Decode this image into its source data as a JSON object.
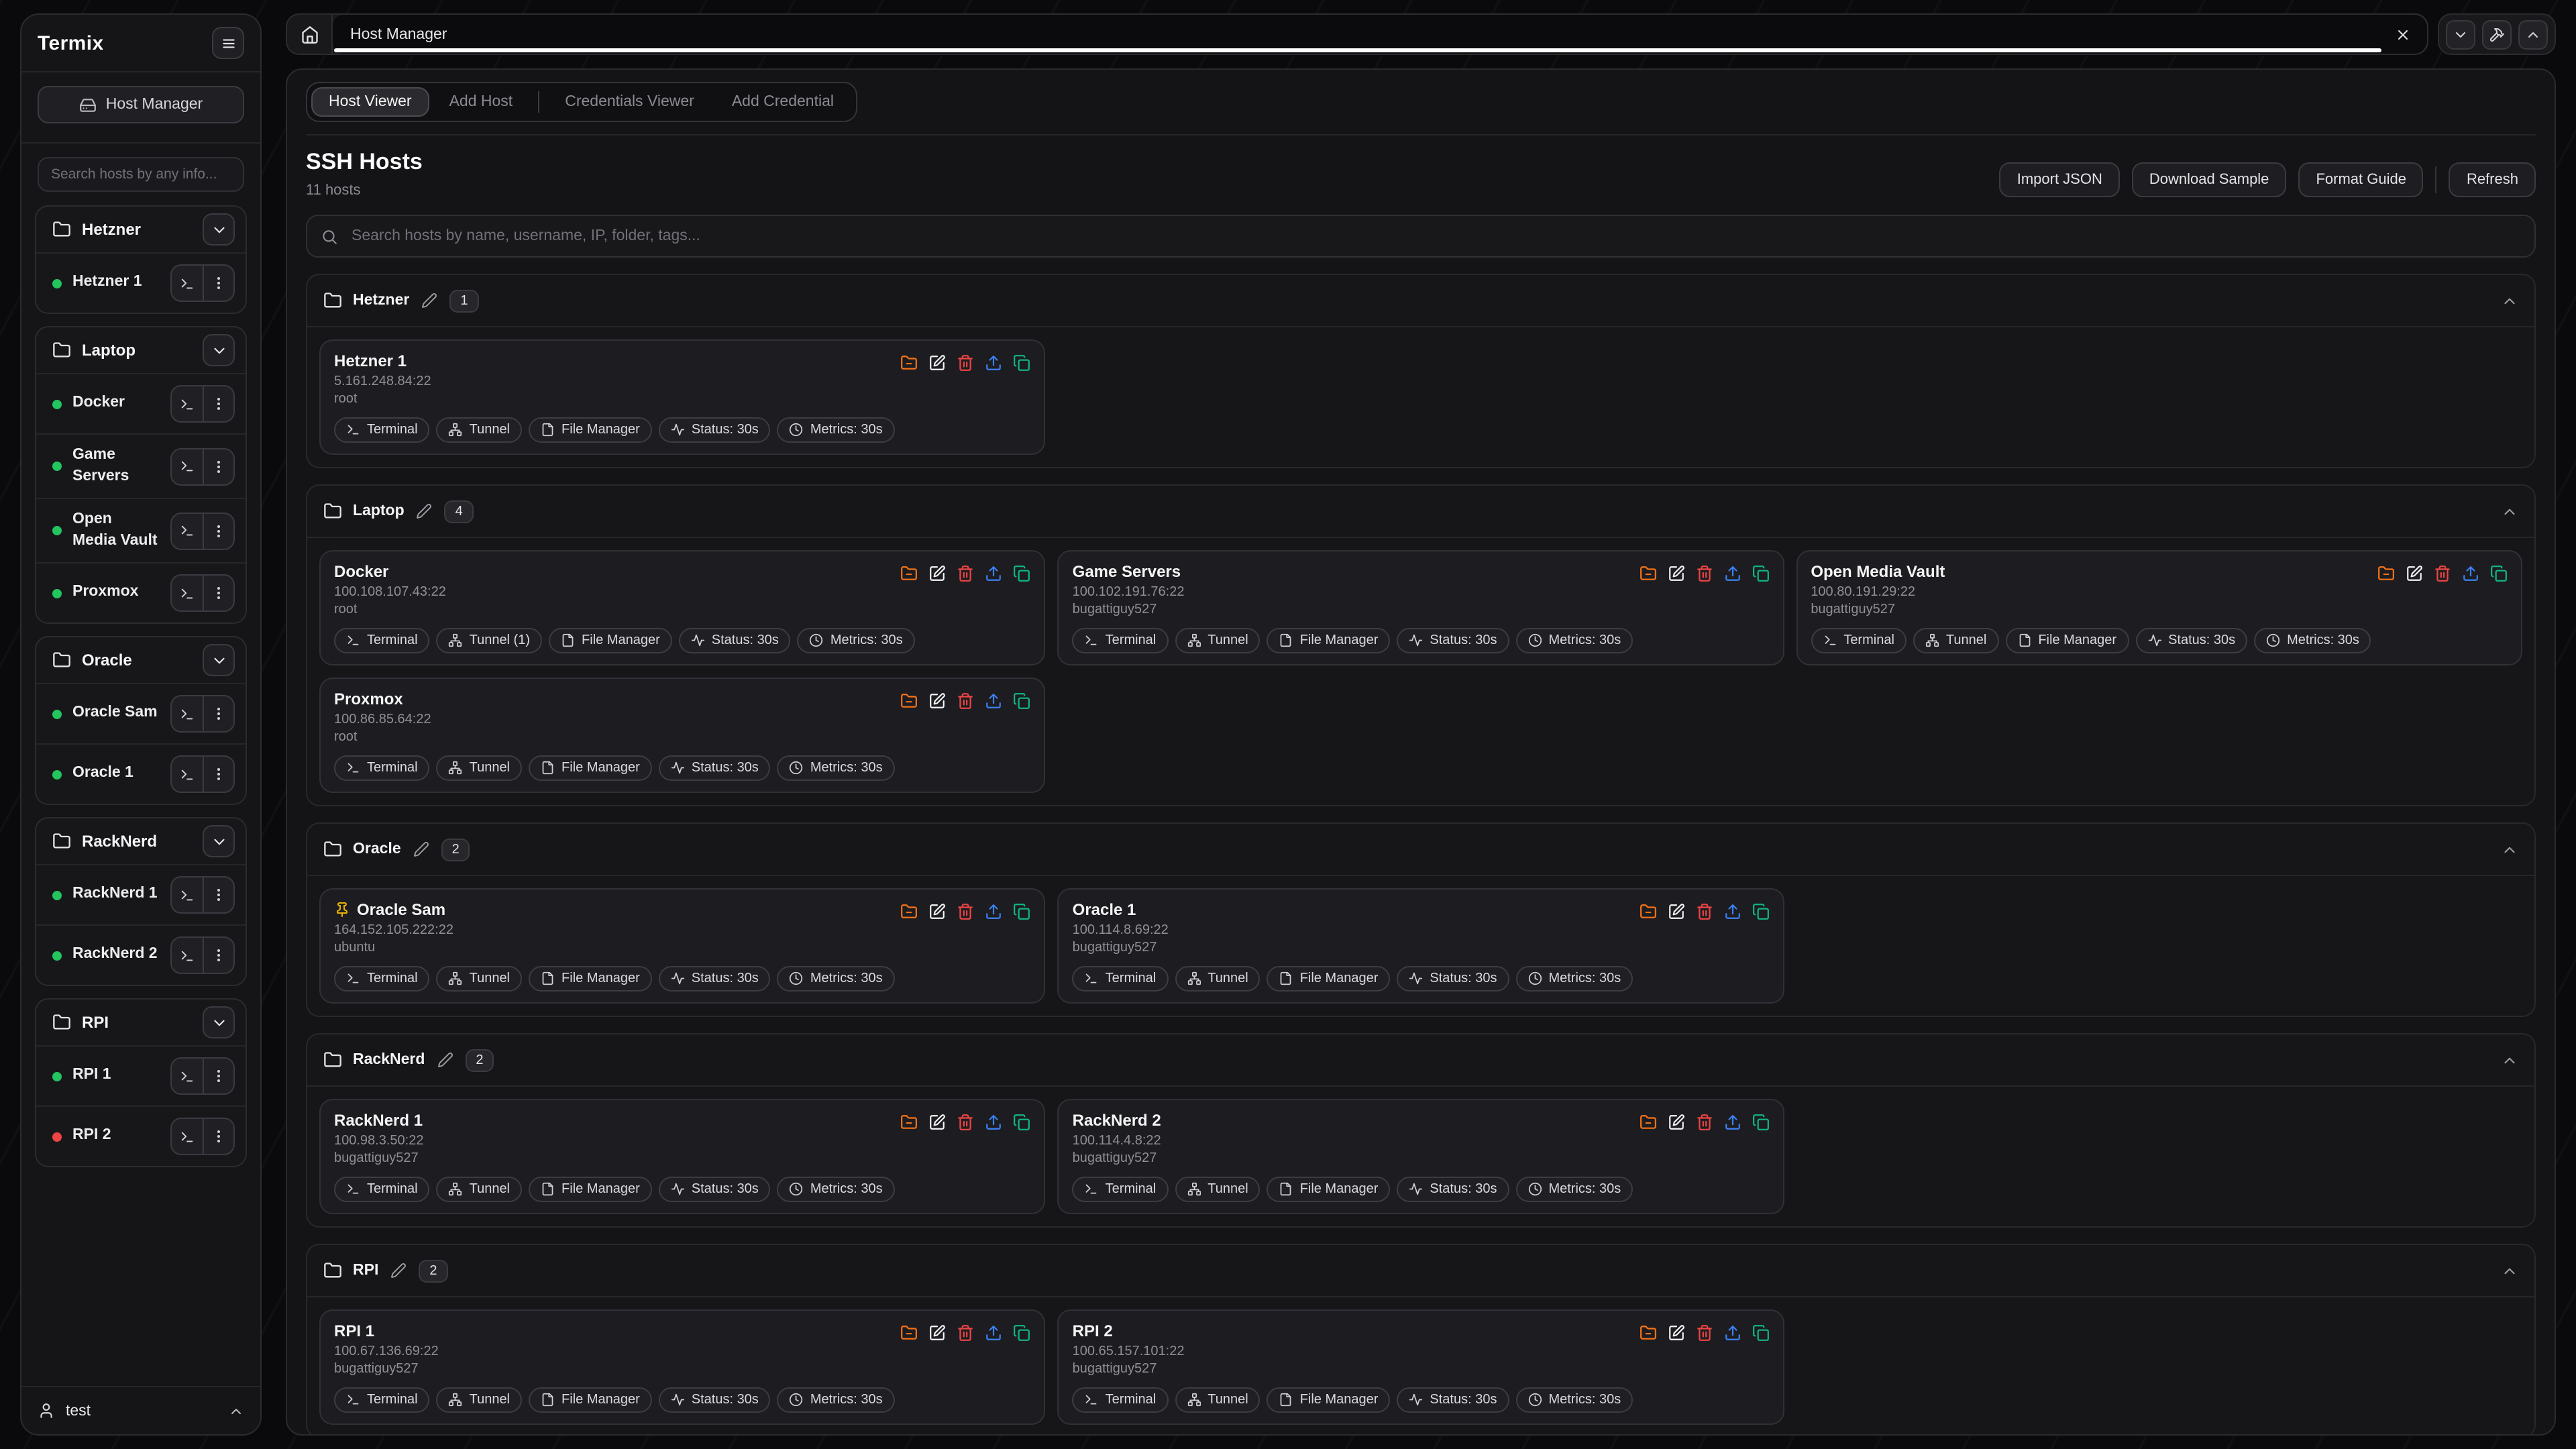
{
  "app": {
    "brand": "Termix",
    "user": "test"
  },
  "topbar": {
    "tab_title": "Host Manager",
    "icons": [
      "home-icon",
      "close-icon",
      "chevron-down-icon",
      "hammer-icon",
      "chevron-up-icon"
    ]
  },
  "sidebar": {
    "host_manager_label": "Host Manager",
    "host_manager_icon": "hard-drive-icon",
    "search_placeholder": "Search hosts by any info...",
    "folder_icon": "folder-icon",
    "row_icons": [
      "terminal-icon",
      "kebab-menu-icon"
    ],
    "status_colors": {
      "online": "#22c55e",
      "offline": "#ef4444"
    },
    "folders": [
      {
        "name": "Hetzner",
        "hosts": [
          {
            "name": "Hetzner 1",
            "status": "online"
          }
        ]
      },
      {
        "name": "Laptop",
        "hosts": [
          {
            "name": "Docker",
            "status": "online"
          },
          {
            "name": "Game Servers",
            "status": "online"
          },
          {
            "name": "Open Media Vault",
            "status": "online"
          },
          {
            "name": "Proxmox",
            "status": "online"
          }
        ]
      },
      {
        "name": "Oracle",
        "hosts": [
          {
            "name": "Oracle Sam",
            "status": "online"
          },
          {
            "name": "Oracle 1",
            "status": "online"
          }
        ]
      },
      {
        "name": "RackNerd",
        "hosts": [
          {
            "name": "RackNerd 1",
            "status": "online"
          },
          {
            "name": "RackNerd 2",
            "status": "online"
          }
        ]
      },
      {
        "name": "RPI",
        "hosts": [
          {
            "name": "RPI 1",
            "status": "online"
          },
          {
            "name": "RPI 2",
            "status": "offline"
          }
        ]
      }
    ]
  },
  "main": {
    "tabs": [
      {
        "label": "Host Viewer",
        "active": true
      },
      {
        "label": "Add Host",
        "active": false
      },
      {
        "label": "Credentials Viewer",
        "active": false
      },
      {
        "label": "Add Credential",
        "active": false
      }
    ],
    "title": "SSH Hosts",
    "host_count": "11 hosts",
    "toolbar": {
      "import_json": "Import JSON",
      "download_sample": "Download Sample",
      "format_guide": "Format Guide",
      "refresh": "Refresh"
    },
    "search_placeholder": "Search hosts by name, username, IP, folder, tags...",
    "card_action_icons": [
      "folder-minus-icon",
      "edit-icon",
      "delete-icon",
      "upload-icon",
      "copy-icon"
    ],
    "card_action_colors": {
      "folder-minus-icon": "#f97316",
      "edit-icon": "#f4f4f5",
      "delete-icon": "#ef4444",
      "upload-icon": "#3b82f6",
      "copy-icon": "#10b981"
    },
    "pin_color": "#eab308",
    "sections": [
      {
        "folder": "Hetzner",
        "count": "1",
        "hosts": [
          {
            "name": "Hetzner 1",
            "address": "5.161.248.84:22",
            "username": "root",
            "pinned": false,
            "chips": [
              {
                "icon": "terminal-icon",
                "label": "Terminal"
              },
              {
                "icon": "tunnel-icon",
                "label": "Tunnel"
              },
              {
                "icon": "file-manager-icon",
                "label": "File Manager"
              },
              {
                "icon": "status-icon",
                "label": "Status: 30s"
              },
              {
                "icon": "metrics-icon",
                "label": "Metrics: 30s"
              }
            ]
          }
        ]
      },
      {
        "folder": "Laptop",
        "count": "4",
        "hosts": [
          {
            "name": "Docker",
            "address": "100.108.107.43:22",
            "username": "root",
            "pinned": false,
            "chips": [
              {
                "icon": "terminal-icon",
                "label": "Terminal"
              },
              {
                "icon": "tunnel-icon",
                "label": "Tunnel (1)"
              },
              {
                "icon": "file-manager-icon",
                "label": "File Manager"
              },
              {
                "icon": "status-icon",
                "label": "Status: 30s"
              },
              {
                "icon": "metrics-icon",
                "label": "Metrics: 30s"
              }
            ]
          },
          {
            "name": "Game Servers",
            "address": "100.102.191.76:22",
            "username": "bugattiguy527",
            "pinned": false,
            "chips": [
              {
                "icon": "terminal-icon",
                "label": "Terminal"
              },
              {
                "icon": "tunnel-icon",
                "label": "Tunnel"
              },
              {
                "icon": "file-manager-icon",
                "label": "File Manager"
              },
              {
                "icon": "status-icon",
                "label": "Status: 30s"
              },
              {
                "icon": "metrics-icon",
                "label": "Metrics: 30s"
              }
            ]
          },
          {
            "name": "Open Media Vault",
            "address": "100.80.191.29:22",
            "username": "bugattiguy527",
            "pinned": false,
            "chips": [
              {
                "icon": "terminal-icon",
                "label": "Terminal"
              },
              {
                "icon": "tunnel-icon",
                "label": "Tunnel"
              },
              {
                "icon": "file-manager-icon",
                "label": "File Manager"
              },
              {
                "icon": "status-icon",
                "label": "Status: 30s"
              },
              {
                "icon": "metrics-icon",
                "label": "Metrics: 30s"
              }
            ]
          },
          {
            "name": "Proxmox",
            "address": "100.86.85.64:22",
            "username": "root",
            "pinned": false,
            "chips": [
              {
                "icon": "terminal-icon",
                "label": "Terminal"
              },
              {
                "icon": "tunnel-icon",
                "label": "Tunnel"
              },
              {
                "icon": "file-manager-icon",
                "label": "File Manager"
              },
              {
                "icon": "status-icon",
                "label": "Status: 30s"
              },
              {
                "icon": "metrics-icon",
                "label": "Metrics: 30s"
              }
            ]
          }
        ]
      },
      {
        "folder": "Oracle",
        "count": "2",
        "hosts": [
          {
            "name": "Oracle Sam",
            "address": "164.152.105.222:22",
            "username": "ubuntu",
            "pinned": true,
            "chips": [
              {
                "icon": "terminal-icon",
                "label": "Terminal"
              },
              {
                "icon": "tunnel-icon",
                "label": "Tunnel"
              },
              {
                "icon": "file-manager-icon",
                "label": "File Manager"
              },
              {
                "icon": "status-icon",
                "label": "Status: 30s"
              },
              {
                "icon": "metrics-icon",
                "label": "Metrics: 30s"
              }
            ]
          },
          {
            "name": "Oracle 1",
            "address": "100.114.8.69:22",
            "username": "bugattiguy527",
            "pinned": false,
            "chips": [
              {
                "icon": "terminal-icon",
                "label": "Terminal"
              },
              {
                "icon": "tunnel-icon",
                "label": "Tunnel"
              },
              {
                "icon": "file-manager-icon",
                "label": "File Manager"
              },
              {
                "icon": "status-icon",
                "label": "Status: 30s"
              },
              {
                "icon": "metrics-icon",
                "label": "Metrics: 30s"
              }
            ]
          }
        ]
      },
      {
        "folder": "RackNerd",
        "count": "2",
        "hosts": [
          {
            "name": "RackNerd 1",
            "address": "100.98.3.50:22",
            "username": "bugattiguy527",
            "pinned": false,
            "chips": [
              {
                "icon": "terminal-icon",
                "label": "Terminal"
              },
              {
                "icon": "tunnel-icon",
                "label": "Tunnel"
              },
              {
                "icon": "file-manager-icon",
                "label": "File Manager"
              },
              {
                "icon": "status-icon",
                "label": "Status: 30s"
              },
              {
                "icon": "metrics-icon",
                "label": "Metrics: 30s"
              }
            ]
          },
          {
            "name": "RackNerd 2",
            "address": "100.114.4.8:22",
            "username": "bugattiguy527",
            "pinned": false,
            "chips": [
              {
                "icon": "terminal-icon",
                "label": "Terminal"
              },
              {
                "icon": "tunnel-icon",
                "label": "Tunnel"
              },
              {
                "icon": "file-manager-icon",
                "label": "File Manager"
              },
              {
                "icon": "status-icon",
                "label": "Status: 30s"
              },
              {
                "icon": "metrics-icon",
                "label": "Metrics: 30s"
              }
            ]
          }
        ]
      },
      {
        "folder": "RPI",
        "count": "2",
        "hosts": [
          {
            "name": "RPI 1",
            "address": "100.67.136.69:22",
            "username": "bugattiguy527",
            "pinned": false,
            "chips": [
              {
                "icon": "terminal-icon",
                "label": "Terminal"
              },
              {
                "icon": "tunnel-icon",
                "label": "Tunnel"
              },
              {
                "icon": "file-manager-icon",
                "label": "File Manager"
              },
              {
                "icon": "status-icon",
                "label": "Status: 30s"
              },
              {
                "icon": "metrics-icon",
                "label": "Metrics: 30s"
              }
            ]
          },
          {
            "name": "RPI 2",
            "address": "100.65.157.101:22",
            "username": "bugattiguy527",
            "pinned": false,
            "chips": [
              {
                "icon": "terminal-icon",
                "label": "Terminal"
              },
              {
                "icon": "tunnel-icon",
                "label": "Tunnel"
              },
              {
                "icon": "file-manager-icon",
                "label": "File Manager"
              },
              {
                "icon": "status-icon",
                "label": "Status: 30s"
              },
              {
                "icon": "metrics-icon",
                "label": "Metrics: 30s"
              }
            ]
          }
        ]
      }
    ]
  }
}
